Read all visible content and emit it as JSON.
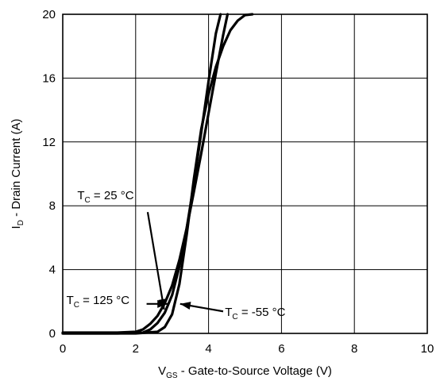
{
  "chart_data": {
    "type": "line",
    "xlabel": {
      "main": "V",
      "sub": "GS",
      "rest": " - Gate-to-Source Voltage (V)"
    },
    "ylabel": {
      "main": "I",
      "sub": "D",
      "rest": " - Drain Current (A)"
    },
    "xlim": [
      0,
      10
    ],
    "ylim": [
      0,
      20
    ],
    "xticks": [
      0,
      2,
      4,
      6,
      8,
      10
    ],
    "yticks": [
      0,
      4,
      8,
      12,
      16,
      20
    ],
    "grid": true,
    "series": [
      {
        "name": {
          "main": "T",
          "sub": "C",
          "rest": " = 25 °C"
        },
        "x": [
          0,
          1.5,
          2.2,
          2.4,
          2.6,
          2.8,
          3.0,
          3.2,
          3.4,
          3.6,
          3.8,
          4.0,
          4.2,
          4.33
        ],
        "y": [
          0,
          0,
          0.05,
          0.25,
          0.65,
          1.3,
          2.4,
          4.2,
          6.6,
          9.4,
          12.6,
          15.8,
          18.8,
          20
        ]
      },
      {
        "name": {
          "main": "T",
          "sub": "C",
          "rest": " = 125 °C"
        },
        "x": [
          0,
          1.5,
          2.0,
          2.2,
          2.4,
          2.6,
          2.8,
          3.0,
          3.2,
          3.4,
          3.6,
          3.8,
          4.0,
          4.2,
          4.4,
          4.52
        ],
        "y": [
          0.05,
          0.05,
          0.1,
          0.25,
          0.6,
          1.1,
          1.9,
          3.0,
          4.6,
          6.6,
          8.9,
          11.3,
          13.8,
          16.3,
          18.7,
          20
        ]
      },
      {
        "name": {
          "main": "T",
          "sub": "C",
          "rest": " = -55 °C"
        },
        "x": [
          0,
          2.0,
          2.6,
          2.8,
          3.0,
          3.2,
          3.4,
          3.6,
          3.8,
          4.0,
          4.2,
          4.4,
          4.6,
          4.8,
          5.0,
          5.2
        ],
        "y": [
          0,
          0,
          0.1,
          0.4,
          1.2,
          3.1,
          6.2,
          9.7,
          12.8,
          15.0,
          16.7,
          18.0,
          19.0,
          19.6,
          19.95,
          20
        ]
      }
    ],
    "annotations": [
      {
        "series": 0,
        "text_at": [
          0.4,
          8.4
        ],
        "arrow_from": [
          2.33,
          7.6
        ],
        "arrow_to": [
          2.78,
          1.5
        ]
      },
      {
        "series": 1,
        "text_at": [
          0.1,
          1.85
        ],
        "arrow_from": [
          2.3,
          1.85
        ],
        "arrow_to": [
          2.88,
          1.85
        ]
      },
      {
        "series": 2,
        "text_at": [
          4.45,
          1.1
        ],
        "arrow_from": [
          4.4,
          1.38
        ],
        "arrow_to": [
          3.22,
          1.85
        ]
      }
    ]
  }
}
